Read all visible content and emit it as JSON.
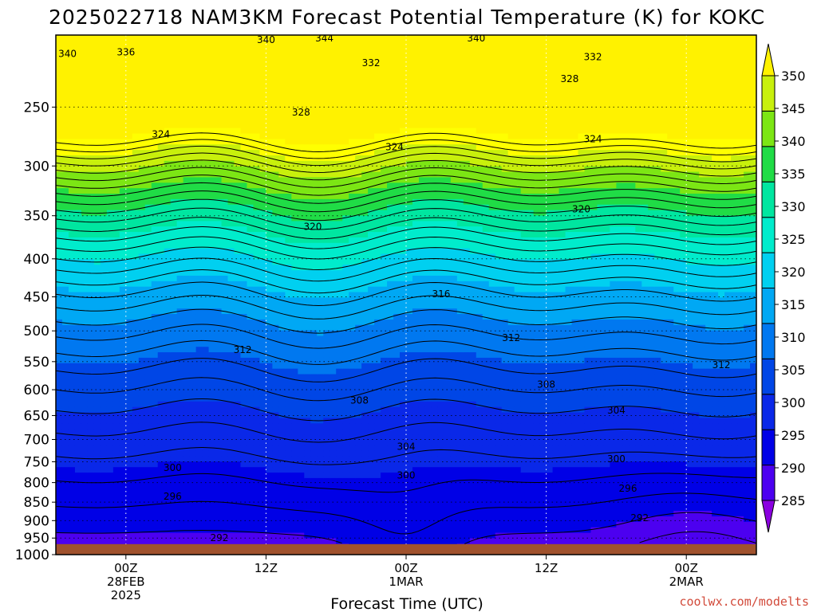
{
  "chart_data": {
    "type": "heatmap",
    "title": "2025022718 NAM3KM Forecast Potential Temperature (K) for KOKC",
    "xlabel": "Forecast Time (UTC)",
    "y_ticks": [
      250,
      300,
      350,
      400,
      450,
      500,
      550,
      600,
      650,
      700,
      750,
      800,
      850,
      900,
      950,
      1000
    ],
    "y_range": [
      1000,
      200
    ],
    "y_scale": "log-pressure",
    "x_range_hours": [
      0,
      60
    ],
    "x_ticks": [
      {
        "hour": 6,
        "lines": [
          "00Z",
          "28FEB",
          "2025"
        ]
      },
      {
        "hour": 18,
        "lines": [
          "12Z"
        ]
      },
      {
        "hour": 30,
        "lines": [
          "00Z",
          "1MAR"
        ]
      },
      {
        "hour": 42,
        "lines": [
          "12Z"
        ]
      },
      {
        "hour": 54,
        "lines": [
          "00Z",
          "2MAR"
        ]
      }
    ],
    "grid": true,
    "colorbar": {
      "levels": [
        285,
        290,
        295,
        300,
        305,
        310,
        315,
        320,
        325,
        330,
        335,
        340,
        345,
        350
      ],
      "colors": [
        "#8a00e0",
        "#4c00f0",
        "#0000e6",
        "#0a28e8",
        "#0046e6",
        "#0078f0",
        "#00a8f4",
        "#00d0f0",
        "#00eccc",
        "#00e6a0",
        "#20dc46",
        "#7ce614",
        "#c8f00c",
        "#ffff00",
        "#fff200"
      ],
      "labels": [
        "285",
        "290",
        "295",
        "300",
        "305",
        "310",
        "315",
        "320",
        "325",
        "330",
        "335",
        "340",
        "345",
        "350"
      ]
    },
    "surface_color": "#a0522d",
    "surface_pressure": 968,
    "contour_interval_K": 2,
    "contour_labels": [
      {
        "text": "340",
        "hour": 1,
        "p": 212
      },
      {
        "text": "340",
        "hour": 18,
        "p": 203
      },
      {
        "text": "344",
        "hour": 23,
        "p": 202
      },
      {
        "text": "340",
        "hour": 36,
        "p": 202
      },
      {
        "text": "336",
        "hour": 6,
        "p": 211
      },
      {
        "text": "332",
        "hour": 27,
        "p": 218
      },
      {
        "text": "332",
        "hour": 46,
        "p": 214
      },
      {
        "text": "328",
        "hour": 21,
        "p": 254
      },
      {
        "text": "328",
        "hour": 44,
        "p": 229
      },
      {
        "text": "324",
        "hour": 9,
        "p": 272
      },
      {
        "text": "324",
        "hour": 29,
        "p": 283
      },
      {
        "text": "324",
        "hour": 46,
        "p": 276
      },
      {
        "text": "320",
        "hour": 22,
        "p": 362
      },
      {
        "text": "320",
        "hour": 45,
        "p": 343
      },
      {
        "text": "316",
        "hour": 33,
        "p": 446
      },
      {
        "text": "312",
        "hour": 16,
        "p": 530
      },
      {
        "text": "312",
        "hour": 39,
        "p": 511
      },
      {
        "text": "312",
        "hour": 57,
        "p": 556
      },
      {
        "text": "308",
        "hour": 26,
        "p": 620
      },
      {
        "text": "308",
        "hour": 42,
        "p": 590
      },
      {
        "text": "304",
        "hour": 30,
        "p": 716
      },
      {
        "text": "304",
        "hour": 48,
        "p": 640
      },
      {
        "text": "300",
        "hour": 10,
        "p": 764
      },
      {
        "text": "300",
        "hour": 30,
        "p": 782
      },
      {
        "text": "300",
        "hour": 48,
        "p": 744
      },
      {
        "text": "296",
        "hour": 10,
        "p": 835
      },
      {
        "text": "296",
        "hour": 49,
        "p": 815
      },
      {
        "text": "292",
        "hour": 14,
        "p": 950
      },
      {
        "text": "292",
        "hour": 50,
        "p": 893
      }
    ]
  },
  "credit": "coolwx.com/modelts"
}
